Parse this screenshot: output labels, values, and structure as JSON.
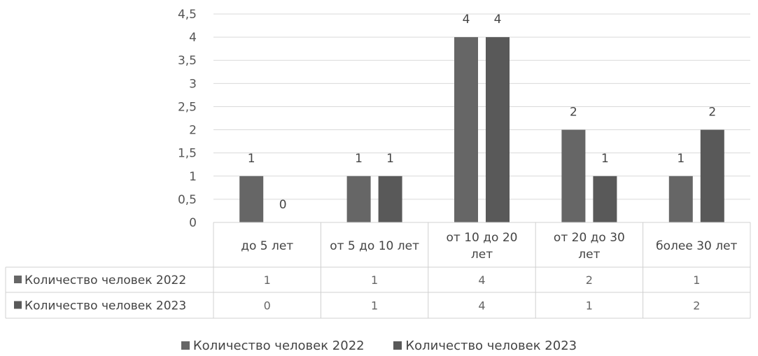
{
  "chart_data": {
    "type": "bar",
    "categories": [
      [
        "до 5 лет"
      ],
      [
        "от 5 до 10 лет"
      ],
      [
        "от 10 до 20",
        "лет"
      ],
      [
        "от 20 до 30",
        "лет"
      ],
      [
        "более 30 лет"
      ]
    ],
    "series": [
      {
        "name": "Количество человек 2022",
        "values": [
          1,
          1,
          4,
          2,
          1
        ],
        "color": "#666666"
      },
      {
        "name": "Количество человек 2023",
        "values": [
          0,
          1,
          4,
          1,
          2
        ],
        "color": "#595959"
      }
    ],
    "yticks": [
      "0",
      "0,5",
      "1",
      "1,5",
      "2",
      "2,5",
      "3",
      "3,5",
      "4",
      "4,5"
    ],
    "ylim": [
      0,
      4.5
    ],
    "grid": true,
    "data_table": true,
    "legend_position": "bottom"
  }
}
